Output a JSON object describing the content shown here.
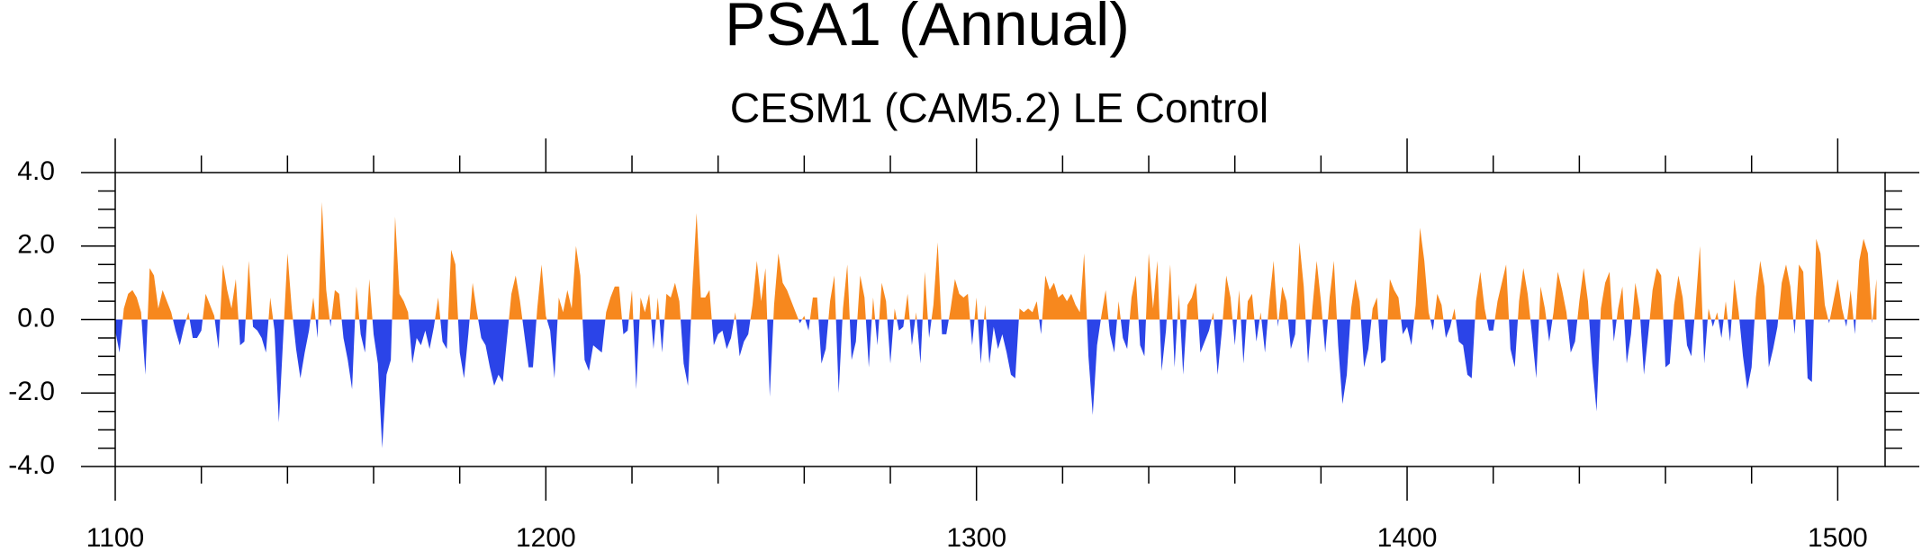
{
  "chart_data": {
    "type": "area",
    "title": "PSA1 (Annual)",
    "subtitle": "CESM1 (CAM5.2) LE Control",
    "colors": {
      "positive": "#f7881e",
      "negative": "#2b44e8"
    },
    "xlim": [
      1100,
      1511
    ],
    "ylim": [
      -4,
      4
    ],
    "xticks": [
      1100,
      1200,
      1300,
      1400,
      1500
    ],
    "yticks": [
      {
        "value": 4,
        "label": "4.0"
      },
      {
        "value": 2,
        "label": "2.0"
      },
      {
        "value": 0,
        "label": "0.0"
      },
      {
        "value": -2,
        "label": "-2.0"
      },
      {
        "value": -4,
        "label": "-4.0"
      }
    ],
    "x": [
      1100,
      1101,
      1102,
      1103,
      1104,
      1105,
      1106,
      1107,
      1108,
      1109,
      1110,
      1111,
      1112,
      1113,
      1114,
      1115,
      1116,
      1117,
      1118,
      1119,
      1120,
      1121,
      1122,
      1123,
      1124,
      1125,
      1126,
      1127,
      1128,
      1129,
      1130,
      1131,
      1132,
      1133,
      1134,
      1135,
      1136,
      1137,
      1138,
      1139,
      1140,
      1141,
      1142,
      1143,
      1144,
      1145,
      1146,
      1147,
      1148,
      1149,
      1150,
      1151,
      1152,
      1153,
      1154,
      1155,
      1156,
      1157,
      1158,
      1159,
      1160,
      1161,
      1162,
      1163,
      1164,
      1165,
      1166,
      1167,
      1168,
      1169,
      1170,
      1171,
      1172,
      1173,
      1174,
      1175,
      1176,
      1177,
      1178,
      1179,
      1180,
      1181,
      1182,
      1183,
      1184,
      1185,
      1186,
      1187,
      1188,
      1189,
      1190,
      1191,
      1192,
      1193,
      1194,
      1195,
      1196,
      1197,
      1198,
      1199,
      1200,
      1201,
      1202,
      1203,
      1204,
      1205,
      1206,
      1207,
      1208,
      1209,
      1210,
      1211,
      1212,
      1213,
      1214,
      1215,
      1216,
      1217,
      1218,
      1219,
      1220,
      1221,
      1222,
      1223,
      1224,
      1225,
      1226,
      1227,
      1228,
      1229,
      1230,
      1231,
      1232,
      1233,
      1234,
      1235,
      1236,
      1237,
      1238,
      1239,
      1240,
      1241,
      1242,
      1243,
      1244,
      1245,
      1246,
      1247,
      1248,
      1249,
      1250,
      1251,
      1252,
      1253,
      1254,
      1255,
      1256,
      1257,
      1258,
      1259,
      1260,
      1261,
      1262,
      1263,
      1264,
      1265,
      1266,
      1267,
      1268,
      1269,
      1270,
      1271,
      1272,
      1273,
      1274,
      1275,
      1276,
      1277,
      1278,
      1279,
      1280,
      1281,
      1282,
      1283,
      1284,
      1285,
      1286,
      1287,
      1288,
      1289,
      1290,
      1291,
      1292,
      1293,
      1294,
      1295,
      1296,
      1297,
      1298,
      1299,
      1300,
      1301,
      1302,
      1303,
      1304,
      1305,
      1306,
      1307,
      1308,
      1309,
      1310,
      1311,
      1312,
      1313,
      1314,
      1315,
      1316,
      1317,
      1318,
      1319,
      1320,
      1321,
      1322,
      1323,
      1324,
      1325,
      1326,
      1327,
      1328,
      1329,
      1330,
      1331,
      1332,
      1333,
      1334,
      1335,
      1336,
      1337,
      1338,
      1339,
      1340,
      1341,
      1342,
      1343,
      1344,
      1345,
      1346,
      1347,
      1348,
      1349,
      1350,
      1351,
      1352,
      1353,
      1354,
      1355,
      1356,
      1357,
      1358,
      1359,
      1360,
      1361,
      1362,
      1363,
      1364,
      1365,
      1366,
      1367,
      1368,
      1369,
      1370,
      1371,
      1372,
      1373,
      1374,
      1375,
      1376,
      1377,
      1378,
      1379,
      1380,
      1381,
      1382,
      1383,
      1384,
      1385,
      1386,
      1387,
      1388,
      1389,
      1390,
      1391,
      1392,
      1393,
      1394,
      1395,
      1396,
      1397,
      1398,
      1399,
      1400,
      1401,
      1402,
      1403,
      1404,
      1405,
      1406,
      1407,
      1408,
      1409,
      1410,
      1411,
      1412,
      1413,
      1414,
      1415,
      1416,
      1417,
      1418,
      1419,
      1420,
      1421,
      1422,
      1423,
      1424,
      1425,
      1426,
      1427,
      1428,
      1429,
      1430,
      1431,
      1432,
      1433,
      1434,
      1435,
      1436,
      1437,
      1438,
      1439,
      1440,
      1441,
      1442,
      1443,
      1444,
      1445,
      1446,
      1447,
      1448,
      1449,
      1450,
      1451,
      1452,
      1453,
      1454,
      1455,
      1456,
      1457,
      1458,
      1459,
      1460,
      1461,
      1462,
      1463,
      1464,
      1465,
      1466,
      1467,
      1468,
      1469,
      1470,
      1471,
      1472,
      1473,
      1474,
      1475,
      1476,
      1477,
      1478,
      1479,
      1480,
      1481,
      1482,
      1483,
      1484,
      1485,
      1486,
      1487,
      1488,
      1489,
      1490,
      1491,
      1492,
      1493,
      1494,
      1495,
      1496,
      1497,
      1498,
      1499,
      1500,
      1501,
      1502,
      1503,
      1504,
      1505,
      1506,
      1507,
      1508,
      1509
    ],
    "values": [
      -0.3,
      -0.9,
      0.3,
      0.7,
      0.8,
      0.6,
      0.2,
      -1.5,
      1.4,
      1.2,
      0.3,
      0.8,
      0.5,
      0.2,
      -0.3,
      -0.7,
      -0.2,
      0.2,
      -0.5,
      -0.5,
      -0.3,
      0.7,
      0.4,
      0.1,
      -0.8,
      1.5,
      0.8,
      0.3,
      1.1,
      -0.7,
      -0.6,
      1.6,
      -0.2,
      -0.3,
      -0.5,
      -0.9,
      0.6,
      -0.3,
      -2.8,
      -0.5,
      1.8,
      0.3,
      -0.8,
      -1.6,
      -0.9,
      -0.3,
      0.6,
      -0.5,
      3.2,
      0.8,
      -0.2,
      0.8,
      0.7,
      -0.5,
      -1.1,
      -1.9,
      0.9,
      -0.4,
      -0.9,
      1.1,
      -0.4,
      -1.2,
      -3.5,
      -1.5,
      -1.1,
      2.8,
      0.7,
      0.5,
      0.2,
      -1.2,
      -0.5,
      -0.7,
      -0.3,
      -0.8,
      -0.2,
      0.6,
      -0.6,
      -0.8,
      1.9,
      1.5,
      -0.9,
      -1.6,
      -0.4,
      1.0,
      0.2,
      -0.5,
      -0.7,
      -1.3,
      -1.8,
      -1.5,
      -1.7,
      -0.5,
      0.7,
      1.2,
      0.5,
      -0.4,
      -1.3,
      -1.3,
      0.3,
      1.5,
      0.1,
      -0.3,
      -1.6,
      0.6,
      0.2,
      0.8,
      0.3,
      2.0,
      1.2,
      -1.1,
      -1.4,
      -0.7,
      -0.8,
      -0.9,
      0.2,
      0.6,
      0.9,
      0.9,
      -0.4,
      -0.3,
      0.8,
      -1.9,
      0.6,
      0.2,
      0.7,
      -0.8,
      0.6,
      -0.9,
      0.7,
      0.6,
      1.0,
      0.5,
      -1.2,
      -1.8,
      0.8,
      2.9,
      0.6,
      0.6,
      0.8,
      -0.7,
      -0.4,
      -0.3,
      -0.8,
      -0.5,
      0.2,
      -1.0,
      -0.6,
      -0.4,
      0.4,
      1.6,
      0.5,
      1.4,
      -2.1,
      0.4,
      1.8,
      1.0,
      0.8,
      0.5,
      0.2,
      -0.1,
      0.1,
      -0.3,
      0.6,
      0.6,
      -1.2,
      -0.8,
      0.5,
      1.2,
      -2.0,
      0.3,
      1.5,
      -1.1,
      -0.6,
      1.2,
      0.6,
      -1.3,
      0.6,
      -0.7,
      1.0,
      0.5,
      -1.2,
      0.3,
      -0.3,
      -0.2,
      0.7,
      -0.7,
      0.2,
      -1.2,
      1.3,
      -0.5,
      0.4,
      2.1,
      -0.4,
      -0.4,
      0.3,
      1.1,
      0.7,
      0.6,
      0.7,
      -0.7,
      0.6,
      -1.2,
      0.4,
      -1.2,
      -0.2,
      -0.8,
      -0.4,
      -0.9,
      -1.5,
      -1.6,
      0.3,
      0.2,
      0.3,
      0.2,
      0.5,
      -0.4,
      1.2,
      0.8,
      1.0,
      0.6,
      0.7,
      0.5,
      0.7,
      0.4,
      0.2,
      1.8,
      -1.0,
      -2.6,
      -0.7,
      0.1,
      0.8,
      -0.4,
      -0.9,
      0.5,
      -0.5,
      -0.8,
      0.6,
      1.2,
      -0.7,
      -1.0,
      1.8,
      0.3,
      1.6,
      -1.4,
      -0.3,
      1.5,
      -1.3,
      0.7,
      -1.5,
      0.4,
      0.6,
      1.0,
      -0.9,
      -0.6,
      -0.3,
      0.2,
      -1.5,
      -0.3,
      1.2,
      0.6,
      -0.7,
      0.8,
      -1.2,
      0.5,
      0.7,
      -0.6,
      0.2,
      -0.9,
      0.5,
      1.6,
      -0.2,
      0.9,
      0.5,
      -0.8,
      -0.4,
      2.1,
      0.9,
      -1.2,
      0.3,
      1.6,
      0.5,
      -0.9,
      0.6,
      1.6,
      -0.7,
      -2.3,
      -1.5,
      0.3,
      1.1,
      0.5,
      -1.3,
      -0.8,
      0.3,
      0.6,
      -1.2,
      -1.1,
      1.1,
      0.8,
      0.6,
      -0.4,
      -0.2,
      -0.7,
      0.4,
      2.5,
      1.6,
      0.2,
      -0.3,
      0.7,
      0.4,
      -0.5,
      -0.2,
      0.3,
      -0.6,
      -0.7,
      -1.5,
      -1.6,
      0.5,
      1.3,
      0.3,
      -0.3,
      -0.3,
      0.5,
      1.0,
      1.5,
      -0.8,
      -1.3,
      0.5,
      1.4,
      0.7,
      -0.4,
      -1.6,
      0.9,
      0.3,
      -0.6,
      0.2,
      1.3,
      0.8,
      0.2,
      -0.9,
      -0.6,
      0.5,
      1.4,
      0.5,
      -1.2,
      -2.5,
      0.3,
      1.0,
      1.3,
      -0.6,
      0.3,
      0.9,
      -1.2,
      -0.4,
      1.0,
      0.3,
      -1.5,
      -0.4,
      0.8,
      1.4,
      1.2,
      -1.3,
      -1.2,
      0.4,
      1.2,
      0.6,
      -0.7,
      -1.0,
      0.4,
      2.0,
      -1.2,
      0.3,
      -0.2,
      0.2,
      -0.5,
      0.5,
      -0.6,
      1.1,
      0.2,
      -1.0,
      -1.9,
      -1.3,
      0.6,
      1.6,
      0.9,
      -1.3,
      -0.8,
      -0.2,
      1.0,
      1.5,
      0.9,
      -0.4,
      1.5,
      1.3,
      -1.6,
      -1.7,
      2.2,
      1.8,
      0.4,
      -0.1,
      0.5,
      1.1,
      0.3,
      -0.2,
      0.8,
      -0.4,
      1.6,
      2.2,
      1.8,
      -0.1,
      1.1
    ]
  }
}
